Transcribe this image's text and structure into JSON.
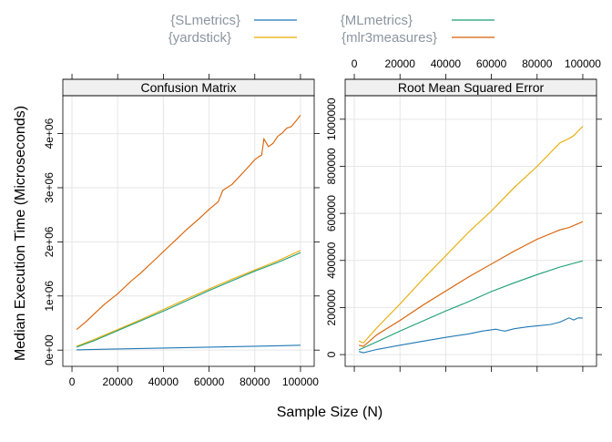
{
  "chart_data": {
    "type": "line",
    "xlabel": "Sample Size (N)",
    "ylabel": "Median Execution Time (Microseconds)",
    "legend": {
      "placement": "top",
      "entries": [
        {
          "name": "{SLmetrics}",
          "color": "#1F78B4"
        },
        {
          "name": "{MLmetrics}",
          "color": "#1B9E77"
        },
        {
          "name": "{yardstick}",
          "color": "#E6AB02"
        },
        {
          "name": "{mlr3measures}",
          "color": "#D95F02"
        }
      ]
    },
    "x_ticks": [
      0,
      20000,
      40000,
      60000,
      80000,
      100000
    ],
    "x_tick_labels": [
      "0",
      "20000",
      "40000",
      "60000",
      "80000",
      "100000"
    ],
    "panels": [
      {
        "title": "Confusion Matrix",
        "xlim": [
          -4000,
          106000
        ],
        "ylim": [
          -300000,
          4700000
        ],
        "y_ticks": [
          0,
          1000000,
          2000000,
          3000000,
          4000000
        ],
        "y_tick_labels": [
          "0e+00",
          "1e+06",
          "2e+06",
          "3e+06",
          "4e+06"
        ],
        "grid": true,
        "series": [
          {
            "name": "{SLmetrics}",
            "color": "#1F78B4",
            "points": [
              [
                2000,
                5000
              ],
              [
                10000,
                13000
              ],
              [
                20000,
                22000
              ],
              [
                30000,
                30000
              ],
              [
                40000,
                38000
              ],
              [
                50000,
                47000
              ],
              [
                60000,
                55000
              ],
              [
                70000,
                63000
              ],
              [
                80000,
                72000
              ],
              [
                90000,
                80000
              ],
              [
                100000,
                90000
              ]
            ]
          },
          {
            "name": "{yardstick}",
            "color": "#E6AB02",
            "points": [
              [
                2000,
                70000
              ],
              [
                10000,
                200000
              ],
              [
                20000,
                380000
              ],
              [
                30000,
                560000
              ],
              [
                40000,
                750000
              ],
              [
                50000,
                940000
              ],
              [
                60000,
                1130000
              ],
              [
                70000,
                1310000
              ],
              [
                80000,
                1480000
              ],
              [
                90000,
                1650000
              ],
              [
                100000,
                1840000
              ]
            ]
          },
          {
            "name": "{MLmetrics}",
            "color": "#1B9E77",
            "points": [
              [
                2000,
                55000
              ],
              [
                10000,
                180000
              ],
              [
                20000,
                360000
              ],
              [
                30000,
                540000
              ],
              [
                40000,
                720000
              ],
              [
                50000,
                910000
              ],
              [
                60000,
                1100000
              ],
              [
                70000,
                1280000
              ],
              [
                80000,
                1460000
              ],
              [
                90000,
                1620000
              ],
              [
                100000,
                1800000
              ]
            ]
          },
          {
            "name": "{mlr3measures}",
            "color": "#D95F02",
            "points": [
              [
                2000,
                380000
              ],
              [
                6000,
                520000
              ],
              [
                10000,
                680000
              ],
              [
                14000,
                840000
              ],
              [
                20000,
                1040000
              ],
              [
                26000,
                1280000
              ],
              [
                30000,
                1420000
              ],
              [
                36000,
                1660000
              ],
              [
                40000,
                1820000
              ],
              [
                46000,
                2060000
              ],
              [
                50000,
                2220000
              ],
              [
                56000,
                2440000
              ],
              [
                60000,
                2600000
              ],
              [
                64000,
                2740000
              ],
              [
                66000,
                2950000
              ],
              [
                70000,
                3060000
              ],
              [
                74000,
                3240000
              ],
              [
                78000,
                3420000
              ],
              [
                80000,
                3520000
              ],
              [
                82000,
                3580000
              ],
              [
                83000,
                3600000
              ],
              [
                84000,
                3900000
              ],
              [
                86000,
                3760000
              ],
              [
                88000,
                3820000
              ],
              [
                90000,
                3950000
              ],
              [
                92000,
                4010000
              ],
              [
                94000,
                4100000
              ],
              [
                96000,
                4130000
              ],
              [
                98000,
                4230000
              ],
              [
                100000,
                4340000
              ]
            ]
          }
        ]
      },
      {
        "title": "Root Mean Squared Error",
        "xlim": [
          -4000,
          106000
        ],
        "ylim": [
          -50000,
          1100000
        ],
        "y_ticks": [
          0,
          200000,
          400000,
          600000,
          800000,
          1000000
        ],
        "y_tick_labels": [
          "0",
          "200000",
          "400000",
          "600000",
          "800000",
          "1000000"
        ],
        "grid": true,
        "series": [
          {
            "name": "{SLmetrics}",
            "color": "#1F78B4",
            "points": [
              [
                2000,
                13000
              ],
              [
                4000,
                8000
              ],
              [
                10000,
                22000
              ],
              [
                20000,
                40000
              ],
              [
                30000,
                57000
              ],
              [
                40000,
                73000
              ],
              [
                50000,
                88000
              ],
              [
                56000,
                100000
              ],
              [
                62000,
                108000
              ],
              [
                64000,
                103000
              ],
              [
                66000,
                100000
              ],
              [
                70000,
                110000
              ],
              [
                76000,
                118000
              ],
              [
                80000,
                122000
              ],
              [
                86000,
                128000
              ],
              [
                90000,
                138000
              ],
              [
                94000,
                156000
              ],
              [
                96000,
                147000
              ],
              [
                98000,
                156000
              ],
              [
                100000,
                155000
              ]
            ]
          },
          {
            "name": "{MLmetrics}",
            "color": "#1B9E77",
            "points": [
              [
                2000,
                20000
              ],
              [
                10000,
                55000
              ],
              [
                20000,
                100000
              ],
              [
                30000,
                143000
              ],
              [
                40000,
                185000
              ],
              [
                50000,
                225000
              ],
              [
                60000,
                268000
              ],
              [
                70000,
                305000
              ],
              [
                80000,
                340000
              ],
              [
                90000,
                372000
              ],
              [
                100000,
                398000
              ]
            ]
          },
          {
            "name": "{yardstick}",
            "color": "#E6AB02",
            "points": [
              [
                2000,
                58000
              ],
              [
                4000,
                50000
              ],
              [
                10000,
                115000
              ],
              [
                20000,
                215000
              ],
              [
                30000,
                320000
              ],
              [
                40000,
                420000
              ],
              [
                50000,
                520000
              ],
              [
                60000,
                610000
              ],
              [
                70000,
                710000
              ],
              [
                80000,
                800000
              ],
              [
                90000,
                900000
              ],
              [
                94000,
                918000
              ],
              [
                96000,
                930000
              ],
              [
                100000,
                970000
              ]
            ]
          },
          {
            "name": "{mlr3measures}",
            "color": "#D95F02",
            "points": [
              [
                2000,
                40000
              ],
              [
                4000,
                35000
              ],
              [
                10000,
                85000
              ],
              [
                20000,
                145000
              ],
              [
                30000,
                210000
              ],
              [
                40000,
                270000
              ],
              [
                50000,
                330000
              ],
              [
                60000,
                385000
              ],
              [
                70000,
                440000
              ],
              [
                80000,
                490000
              ],
              [
                90000,
                530000
              ],
              [
                94000,
                540000
              ],
              [
                100000,
                565000
              ]
            ]
          }
        ]
      }
    ]
  }
}
